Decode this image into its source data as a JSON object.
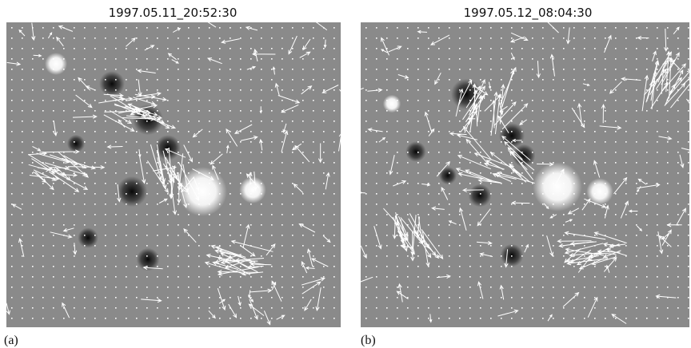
{
  "panels": [
    {
      "title": "1997.05.11_20:52:30",
      "label": "(a)"
    },
    {
      "title": "1997.05.12_08:04:30",
      "label": "(b)"
    }
  ]
}
